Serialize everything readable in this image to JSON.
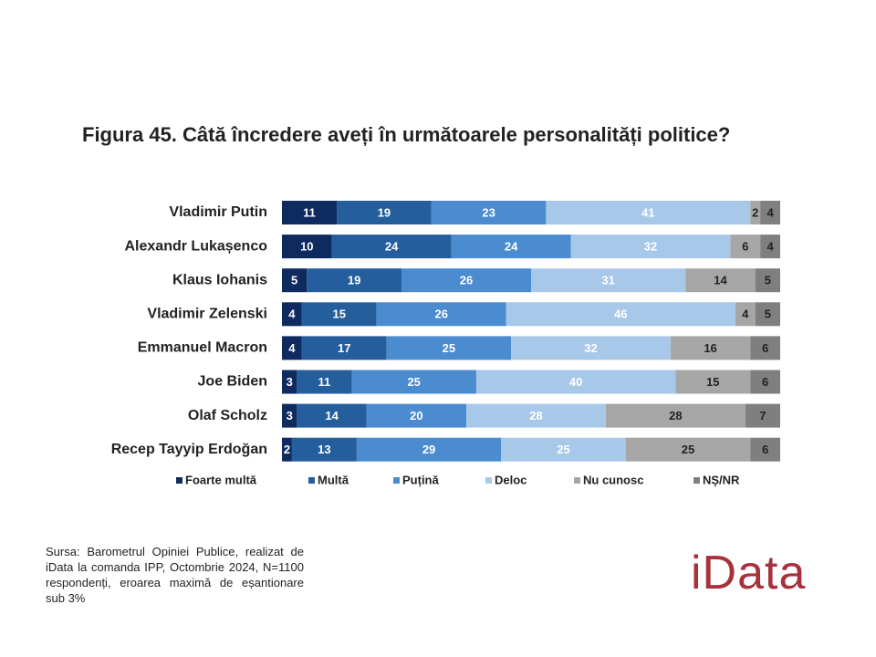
{
  "chart_data": {
    "type": "stacked-barh",
    "title": "Figura 45. Câtă încredere aveți în următoarele personalități politice?",
    "categories": [
      "Vladimir Putin",
      "Alexandr Lukașenco",
      "Klaus Iohanis",
      "Vladimir Zelenski",
      "Emmanuel Macron",
      "Joe Biden",
      "Olaf Scholz",
      "Recep Tayyip Erdoğan"
    ],
    "series": [
      {
        "name": "Foarte multă",
        "color": "#0f2a5e",
        "values": [
          11,
          10,
          5,
          4,
          4,
          3,
          3,
          2
        ]
      },
      {
        "name": "Multă",
        "color": "#255e9c",
        "values": [
          19,
          24,
          19,
          15,
          17,
          11,
          14,
          13
        ]
      },
      {
        "name": "Puțină",
        "color": "#4b8bd0",
        "values": [
          23,
          24,
          26,
          26,
          25,
          25,
          20,
          29
        ]
      },
      {
        "name": "Deloc",
        "color": "#a8c8ea",
        "values": [
          41,
          32,
          31,
          46,
          32,
          40,
          28,
          25
        ]
      },
      {
        "name": "Nu cunosc",
        "color": "#a6a6a6",
        "values": [
          2,
          6,
          14,
          4,
          16,
          15,
          28,
          25
        ]
      },
      {
        "name": "NȘ/NR",
        "color": "#7f7f7f",
        "values": [
          4,
          4,
          5,
          5,
          6,
          6,
          7,
          6
        ]
      }
    ],
    "xlim": [
      0,
      100
    ]
  },
  "source": "Sursa: Barometrul Opiniei Publice, realizat de iData la comanda IPP, Octombrie 2024, N=1100 respondenți, eroarea maximă de eșantionare sub 3%",
  "logo": "iData"
}
